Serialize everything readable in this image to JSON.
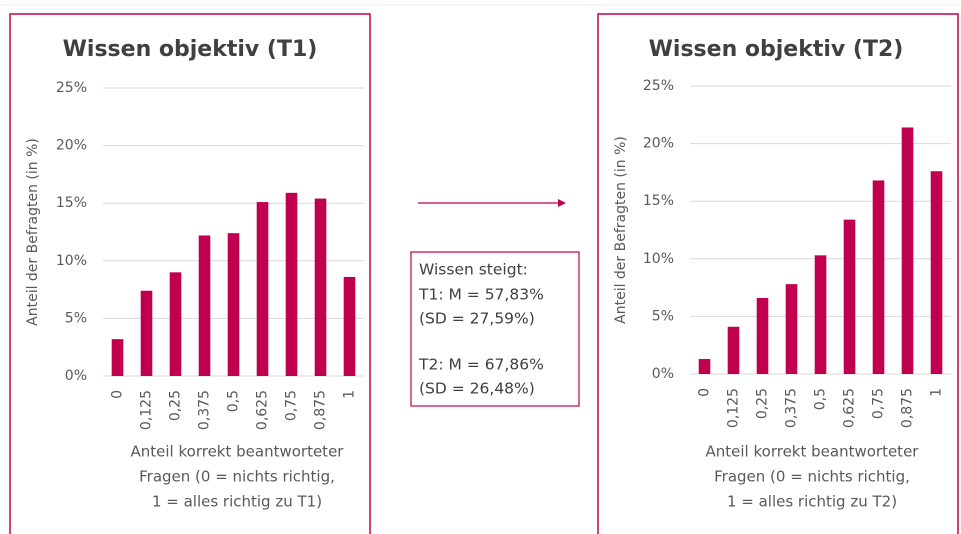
{
  "chart_data": [
    {
      "type": "bar",
      "title": "Wissen objektiv (T1)",
      "ylabel": "Anteil der Befragten (in %)",
      "xlabel": [
        "Anteil korrekt beantworteter",
        "Fragen (0 = nichts richtig,",
        "1 = alles richtig zu T1)"
      ],
      "categories": [
        "0",
        "0,125",
        "0,25",
        "0,375",
        "0,5",
        "0,625",
        "0,75",
        "0,875",
        "1"
      ],
      "values": [
        3.2,
        7.4,
        9.0,
        12.2,
        12.4,
        15.1,
        15.9,
        15.4,
        8.6
      ],
      "color": "#c0004e",
      "ylim": [
        0,
        25
      ],
      "yticks": [
        {
          "value": 0,
          "label": "0%"
        },
        {
          "value": 5,
          "label": "5%"
        },
        {
          "value": 10,
          "label": "10%"
        },
        {
          "value": 15,
          "label": "15%"
        },
        {
          "value": 20,
          "label": "20%"
        },
        {
          "value": 25,
          "label": "25%"
        }
      ],
      "grid": true
    },
    {
      "type": "bar",
      "title": "Wissen objektiv (T2)",
      "ylabel": "Anteil der Befragten (in %)",
      "xlabel": [
        "Anteil korrekt beantworteter",
        "Fragen (0 = nichts richtig,",
        "1 = alles richtig zu T2)"
      ],
      "categories": [
        "0",
        "0,125",
        "0,25",
        "0,375",
        "0,5",
        "0,625",
        "0,75",
        "0,875",
        "1"
      ],
      "values": [
        1.3,
        4.1,
        6.6,
        7.8,
        10.3,
        13.4,
        16.8,
        21.4,
        17.6
      ],
      "color": "#c0004e",
      "ylim": [
        0,
        25
      ],
      "yticks": [
        {
          "value": 0,
          "label": "0%"
        },
        {
          "value": 5,
          "label": "5%"
        },
        {
          "value": 10,
          "label": "10%"
        },
        {
          "value": 15,
          "label": "15%"
        },
        {
          "value": 20,
          "label": "20%"
        },
        {
          "value": 25,
          "label": "25%"
        }
      ],
      "grid": true
    }
  ],
  "annotation": {
    "lines": [
      "Wissen steigt:",
      "T1: M = 57,83%",
      "(SD = 27,59%)",
      "T2: M = 67,86%",
      "(SD = 26,48%)"
    ]
  }
}
